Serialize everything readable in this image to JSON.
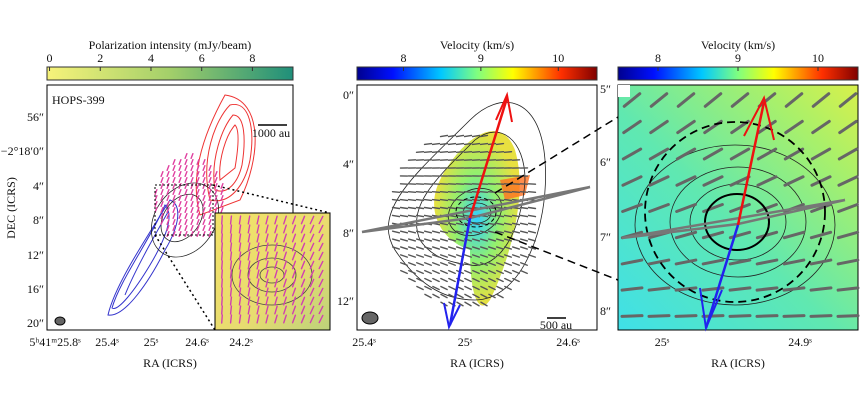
{
  "panels": [
    {
      "colorbar": {
        "label": "Polarization intensity (mJy/beam)",
        "lim": [
          -0.1,
          9.6
        ],
        "ticks": [
          0,
          2,
          4,
          6,
          8
        ]
      },
      "source": "HOPS-399",
      "scalebar": "1000 au",
      "xlabel": "RA (ICRS)",
      "ylabel": "DEC (ICRS)",
      "xticks": [
        "5ʰ41ᵐ25.8ˢ",
        "25.4ˢ",
        "25ˢ",
        "24.6ˢ",
        "24.2ˢ"
      ],
      "yticks": [
        "56″",
        "−2°18′0″",
        "4″",
        "8″",
        "12″",
        "16″",
        "20″"
      ]
    },
    {
      "colorbar": {
        "label": "Velocity (km/s)",
        "lim": [
          7.4,
          10.5
        ],
        "ticks": [
          8,
          9,
          10
        ]
      },
      "scalebar": "500 au",
      "xlabel": "RA (ICRS)",
      "xticks": [
        "25.4ˢ",
        "25ˢ",
        "24.6ˢ"
      ],
      "yticks": [
        "0″",
        "4″",
        "8″",
        "12″"
      ],
      "y2ticks": [
        "5″",
        "6″",
        "7″",
        "8″"
      ]
    },
    {
      "colorbar": {
        "label": "Velocity (km/s)",
        "lim": [
          7.5,
          10.5
        ],
        "ticks": [
          8,
          9,
          10
        ]
      },
      "xlabel": "RA (ICRS)",
      "xticks": [
        "25ˢ",
        "24.9ˢ"
      ]
    }
  ]
}
